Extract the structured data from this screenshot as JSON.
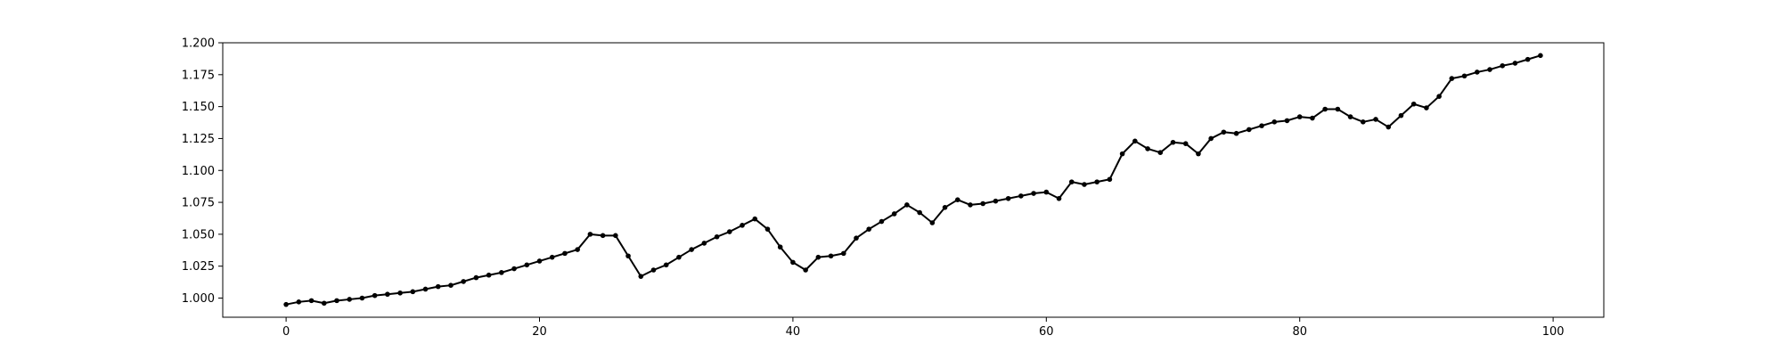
{
  "chart_data": {
    "type": "line",
    "title": "",
    "xlabel": "",
    "ylabel": "",
    "xlim": [
      -5,
      104
    ],
    "ylim": [
      0.985,
      1.2
    ],
    "xticks": [
      0,
      20,
      40,
      60,
      80,
      100
    ],
    "xtick_labels": [
      "0",
      "20",
      "40",
      "60",
      "80",
      "100"
    ],
    "yticks": [
      1.0,
      1.025,
      1.05,
      1.075,
      1.1,
      1.125,
      1.15,
      1.175,
      1.2
    ],
    "ytick_labels": [
      "1.000",
      "1.025",
      "1.050",
      "1.075",
      "1.100",
      "1.125",
      "1.150",
      "1.175",
      "1.200"
    ],
    "grid": false,
    "legend": "none",
    "series": [
      {
        "color": "#000000",
        "marker": "circle",
        "x": [
          0,
          1,
          2,
          3,
          4,
          5,
          6,
          7,
          8,
          9,
          10,
          11,
          12,
          13,
          14,
          15,
          16,
          17,
          18,
          19,
          20,
          21,
          22,
          23,
          24,
          25,
          26,
          27,
          28,
          29,
          30,
          31,
          32,
          33,
          34,
          35,
          36,
          37,
          38,
          39,
          40,
          41,
          42,
          43,
          44,
          45,
          46,
          47,
          48,
          49,
          50,
          51,
          52,
          53,
          54,
          55,
          56,
          57,
          58,
          59,
          60,
          61,
          62,
          63,
          64,
          65,
          66,
          67,
          68,
          69,
          70,
          71,
          72,
          73,
          74,
          75,
          76,
          77,
          78,
          79,
          80,
          81,
          82,
          83,
          84,
          85,
          86,
          87,
          88,
          89,
          90,
          91,
          92,
          93,
          94,
          95,
          96,
          97,
          98,
          99
        ],
        "values": [
          0.995,
          0.997,
          0.998,
          0.996,
          0.998,
          0.999,
          1.0,
          1.002,
          1.003,
          1.004,
          1.005,
          1.007,
          1.009,
          1.01,
          1.013,
          1.016,
          1.018,
          1.02,
          1.023,
          1.026,
          1.029,
          1.032,
          1.035,
          1.038,
          1.05,
          1.049,
          1.049,
          1.033,
          1.017,
          1.022,
          1.026,
          1.032,
          1.038,
          1.043,
          1.048,
          1.052,
          1.057,
          1.062,
          1.054,
          1.04,
          1.028,
          1.022,
          1.032,
          1.033,
          1.035,
          1.047,
          1.054,
          1.06,
          1.066,
          1.073,
          1.067,
          1.059,
          1.071,
          1.077,
          1.073,
          1.074,
          1.076,
          1.078,
          1.08,
          1.082,
          1.083,
          1.078,
          1.091,
          1.089,
          1.091,
          1.093,
          1.113,
          1.123,
          1.117,
          1.114,
          1.122,
          1.121,
          1.113,
          1.125,
          1.13,
          1.129,
          1.132,
          1.135,
          1.138,
          1.139,
          1.142,
          1.141,
          1.148,
          1.148,
          1.142,
          1.138,
          1.14,
          1.134,
          1.143,
          1.152,
          1.149,
          1.158,
          1.172,
          1.174,
          1.177,
          1.179,
          1.182,
          1.184,
          1.187,
          1.19
        ]
      }
    ]
  }
}
